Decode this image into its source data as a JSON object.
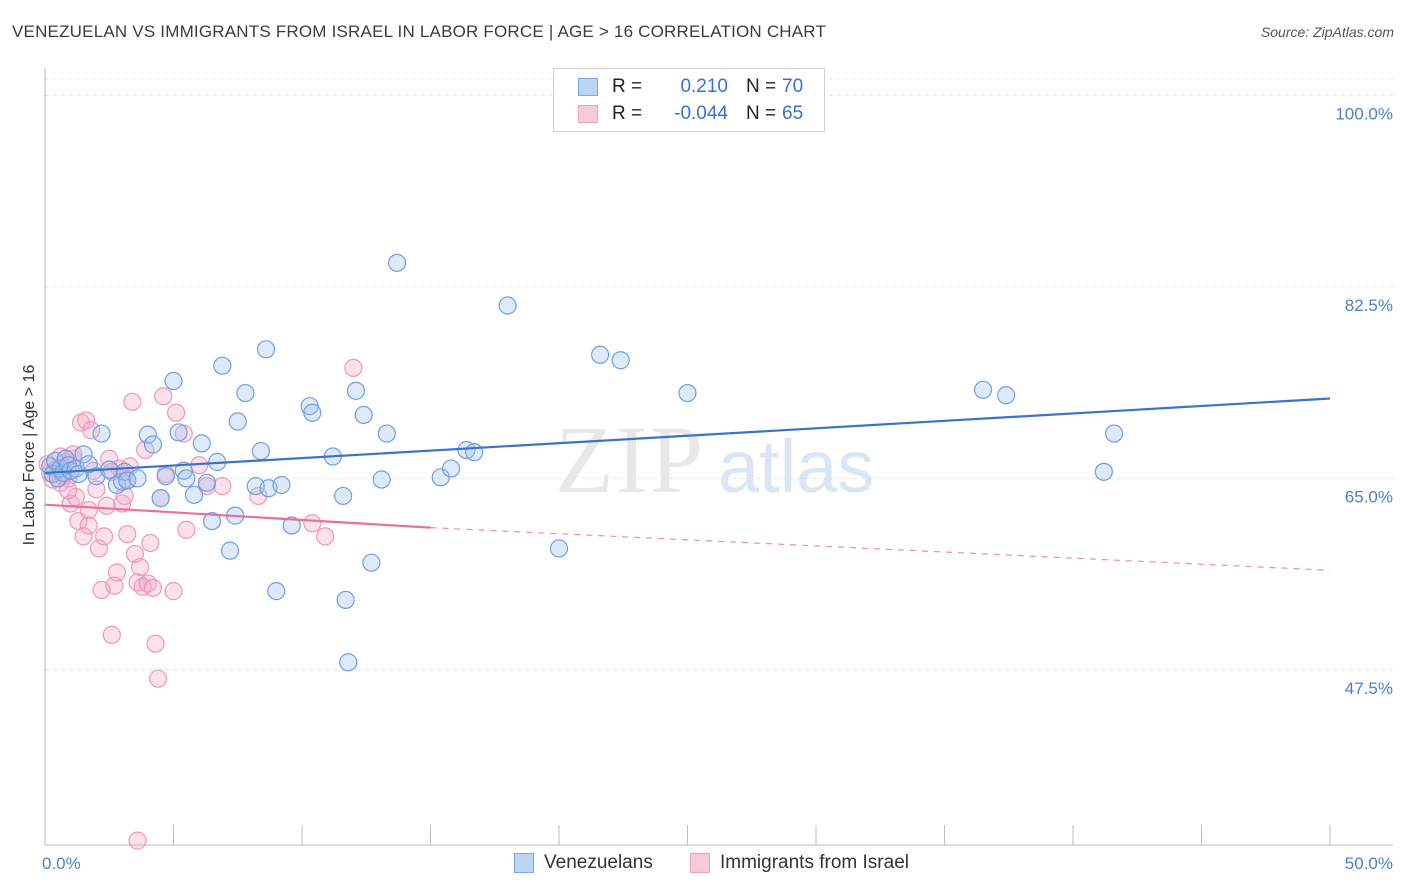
{
  "title": "VENEZUELAN VS IMMIGRANTS FROM ISRAEL IN LABOR FORCE | AGE > 16 CORRELATION CHART",
  "source": "Source: ZipAtlas.com",
  "legend": {
    "rows": [
      {
        "r_label": "R =",
        "r_value": "0.210",
        "n_label": "N =",
        "n_value": "70",
        "color": "#7aa7e8",
        "fill": "#bcd4f5"
      },
      {
        "r_label": "R =",
        "r_value": "-0.044",
        "n_label": "N =",
        "n_value": "65",
        "color": "#f0a0bd",
        "fill": "#f8cadb"
      }
    ]
  },
  "bottom_legend": {
    "venezuelans": "Venezuelans",
    "israel": "Immigrants from Israel"
  },
  "chart_data": {
    "type": "scatter",
    "title": "VENEZUELAN VS IMMIGRANTS FROM ISRAEL IN LABOR FORCE | AGE > 16 CORRELATION CHART",
    "xlabel": "",
    "ylabel": "In Labor Force | Age > 16",
    "xlim": [
      0,
      50
    ],
    "ylim": [
      31.5,
      101.5
    ],
    "x_tick_labels": [
      "0.0%",
      "50.0%"
    ],
    "y_ticks": [
      47.5,
      65.0,
      82.5,
      100.0
    ],
    "y_tick_labels": [
      "47.5%",
      "65.0%",
      "82.5%",
      "100.0%"
    ],
    "grid": true,
    "series": [
      {
        "name": "Venezuelans",
        "color": "#4a7fd0",
        "points": [
          [
            0.2,
            66.1
          ],
          [
            0.3,
            65.4
          ],
          [
            0.4,
            66.6
          ],
          [
            0.5,
            65.0
          ],
          [
            0.6,
            65.9
          ],
          [
            0.7,
            65.5
          ],
          [
            0.8,
            66.8
          ],
          [
            0.9,
            66.2
          ],
          [
            1.0,
            65.7
          ],
          [
            1.2,
            65.9
          ],
          [
            1.3,
            65.4
          ],
          [
            1.5,
            67.2
          ],
          [
            1.7,
            66.3
          ],
          [
            2.0,
            65.2
          ],
          [
            2.2,
            69.1
          ],
          [
            2.5,
            65.8
          ],
          [
            2.8,
            64.4
          ],
          [
            3.0,
            64.7
          ],
          [
            3.1,
            65.6
          ],
          [
            3.2,
            64.8
          ],
          [
            3.6,
            65.0
          ],
          [
            4.0,
            69.0
          ],
          [
            4.2,
            68.1
          ],
          [
            4.5,
            63.2
          ],
          [
            4.7,
            65.2
          ],
          [
            5.0,
            73.9
          ],
          [
            5.2,
            69.2
          ],
          [
            5.4,
            65.7
          ],
          [
            5.5,
            65.0
          ],
          [
            5.8,
            63.5
          ],
          [
            6.1,
            68.2
          ],
          [
            6.3,
            64.6
          ],
          [
            6.5,
            61.1
          ],
          [
            6.7,
            66.5
          ],
          [
            6.9,
            75.3
          ],
          [
            7.2,
            58.4
          ],
          [
            7.4,
            61.6
          ],
          [
            7.5,
            70.2
          ],
          [
            7.8,
            72.8
          ],
          [
            8.2,
            64.3
          ],
          [
            8.4,
            67.5
          ],
          [
            8.6,
            76.8
          ],
          [
            8.7,
            64.1
          ],
          [
            9.0,
            54.7
          ],
          [
            9.2,
            64.4
          ],
          [
            9.6,
            60.7
          ],
          [
            10.3,
            71.6
          ],
          [
            10.4,
            71.0
          ],
          [
            11.2,
            67.0
          ],
          [
            11.6,
            63.4
          ],
          [
            11.7,
            53.9
          ],
          [
            11.8,
            48.2
          ],
          [
            12.1,
            73.0
          ],
          [
            12.4,
            70.8
          ],
          [
            12.7,
            57.3
          ],
          [
            13.1,
            64.9
          ],
          [
            13.3,
            69.1
          ],
          [
            13.7,
            84.7
          ],
          [
            15.4,
            65.1
          ],
          [
            15.8,
            65.9
          ],
          [
            16.4,
            67.6
          ],
          [
            16.7,
            67.4
          ],
          [
            18.0,
            80.8
          ],
          [
            20.0,
            58.6
          ],
          [
            21.6,
            76.3
          ],
          [
            22.4,
            75.8
          ],
          [
            25.0,
            72.8
          ],
          [
            36.5,
            73.1
          ],
          [
            37.4,
            72.6
          ],
          [
            41.6,
            69.1
          ],
          [
            41.2,
            65.6
          ]
        ],
        "trend": {
          "x": [
            0,
            50
          ],
          "y": [
            65.5,
            72.3
          ]
        }
      },
      {
        "name": "Immigrants from Israel",
        "color": "#e8709a",
        "points": [
          [
            0.1,
            66.3
          ],
          [
            0.2,
            65.5
          ],
          [
            0.3,
            64.9
          ],
          [
            0.4,
            65.8
          ],
          [
            0.5,
            66.0
          ],
          [
            0.6,
            67.0
          ],
          [
            0.7,
            65.2
          ],
          [
            0.8,
            66.5
          ],
          [
            0.9,
            65.0
          ],
          [
            1.0,
            62.7
          ],
          [
            1.1,
            66.8
          ],
          [
            1.2,
            63.3
          ],
          [
            1.3,
            61.1
          ],
          [
            1.4,
            70.1
          ],
          [
            1.5,
            59.7
          ],
          [
            1.6,
            70.3
          ],
          [
            1.7,
            62.1
          ],
          [
            1.8,
            69.4
          ],
          [
            1.9,
            65.7
          ],
          [
            2.0,
            64.0
          ],
          [
            2.1,
            58.6
          ],
          [
            2.2,
            54.8
          ],
          [
            2.3,
            59.7
          ],
          [
            2.4,
            62.5
          ],
          [
            2.5,
            66.8
          ],
          [
            2.6,
            50.7
          ],
          [
            2.7,
            55.2
          ],
          [
            2.8,
            56.4
          ],
          [
            2.9,
            65.9
          ],
          [
            3.0,
            62.7
          ],
          [
            3.1,
            63.4
          ],
          [
            3.2,
            59.9
          ],
          [
            3.3,
            66.1
          ],
          [
            3.4,
            72.0
          ],
          [
            3.5,
            58.1
          ],
          [
            3.6,
            55.5
          ],
          [
            3.7,
            56.9
          ],
          [
            3.8,
            55.1
          ],
          [
            3.9,
            67.6
          ],
          [
            4.0,
            55.4
          ],
          [
            4.1,
            59.1
          ],
          [
            4.2,
            55.0
          ],
          [
            4.3,
            49.9
          ],
          [
            4.4,
            46.7
          ],
          [
            4.5,
            63.2
          ],
          [
            4.6,
            72.5
          ],
          [
            4.7,
            65.4
          ],
          [
            5.0,
            54.7
          ],
          [
            5.1,
            71.0
          ],
          [
            5.4,
            69.1
          ],
          [
            5.5,
            60.3
          ],
          [
            6.0,
            66.2
          ],
          [
            6.3,
            64.3
          ],
          [
            6.9,
            64.3
          ],
          [
            8.3,
            63.4
          ],
          [
            10.4,
            60.9
          ],
          [
            10.9,
            59.7
          ],
          [
            12.0,
            75.1
          ],
          [
            3.6,
            31.9
          ],
          [
            0.6,
            64.6
          ],
          [
            0.9,
            63.9
          ],
          [
            1.1,
            67.2
          ],
          [
            1.7,
            60.7
          ],
          [
            2.6,
            65.6
          ],
          [
            3.2,
            64.9
          ]
        ],
        "trend": {
          "x": [
            0,
            15
          ],
          "y": [
            62.6,
            60.5
          ]
        },
        "trend_dashed": {
          "x": [
            15,
            50
          ],
          "y": [
            60.5,
            56.6
          ]
        }
      }
    ]
  }
}
